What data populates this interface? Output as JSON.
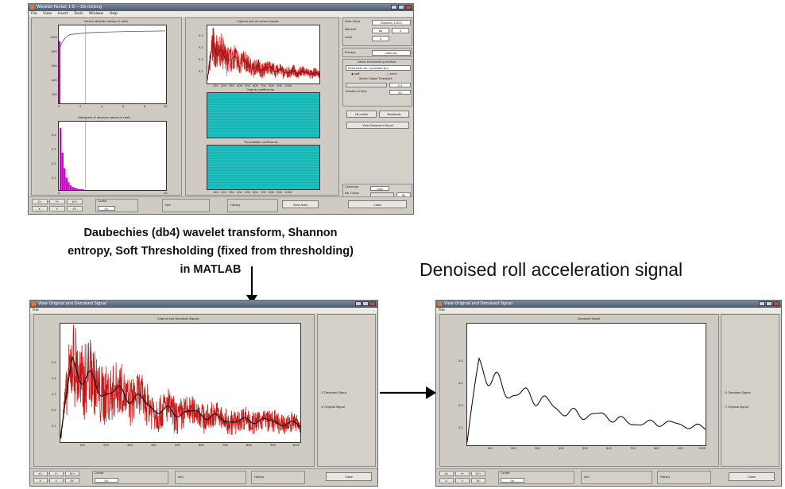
{
  "process_caption": {
    "line1": "Daubechies (db4) wavelet transform, Shannon",
    "line2": "entropy, Soft Thresholding  (fixed from thresholding)",
    "line3": "in MATLAB"
  },
  "result_caption": "Denoised roll acceleration signal",
  "colors": {
    "noisy_signal": "#c41a1a",
    "denoised_signal": "#111111",
    "histogram": "#cc00cc",
    "coefficients": "#22c4c4",
    "window_bg": "#d4d0c8"
  },
  "toolbox_window": {
    "title": "Wavelet Packet 1-D  --  De-noising",
    "menu": [
      "File",
      "View",
      "Insert",
      "Tools",
      "Window",
      "Help"
    ],
    "plots": {
      "sorted_abs": "Sorted absolute values of coefs",
      "histogram": "Histogram of absolute values of coefs",
      "original_denoised": "Original and de-noised signals",
      "original_coefs": "Original coefficients",
      "thresholded_coefs": "Thresholded coefficients"
    },
    "sorted_ticks_x": [
      "0",
      "2",
      "4",
      "6",
      "8",
      "10"
    ],
    "sorted_ticks_y": [
      "1000",
      "800",
      "600",
      "400",
      "200"
    ],
    "hist_ticks_x": [
      "0",
      "2",
      "4",
      "6",
      "8",
      "10"
    ],
    "hist_ticks_y": [
      "0.4",
      "0.3",
      "0.2",
      "0.1"
    ],
    "signal_ticks_x": [
      "100",
      "200",
      "300",
      "400",
      "500",
      "600",
      "700",
      "800",
      "900",
      "1000"
    ],
    "signal_ticks_y": [
      "0.5",
      "0.4",
      "0.3",
      "0.2"
    ],
    "info": {
      "data_label": "Data  (Size)",
      "data_value": "Dataset  (1024)",
      "wavelet_label": "Wavelet",
      "wavelet_family": "db",
      "wavelet_order": "4",
      "level_label": "Level",
      "level_value": "4",
      "entropy_label": "Entropy",
      "entropy_value": "shannon"
    },
    "thresholding": {
      "title": "Select thresholding method",
      "method": "Fixed form thr. (unscaled wn)",
      "soft": "soft",
      "hard": "hard",
      "global_label": "Select Global Threshold",
      "global_value": "2.5",
      "bins_label": "Number of bins",
      "bins_value": "50"
    },
    "buttons": {
      "denoise": "De-noise",
      "residuals": "Residuals",
      "view_denoised": "View Denoised Signal",
      "view_axes": "View Axes",
      "close": "Close"
    },
    "colormap": {
      "label": "Colormap",
      "value": "cool",
      "nb_label": "Nb. Colors",
      "nb_value": "64"
    },
    "bottom": {
      "center_label": "Center",
      "center_value": "On",
      "info_label": "Info",
      "history_label": "History"
    }
  },
  "denoised_window_left": {
    "title": "View Original and Denoised Signal",
    "menu": [
      "File"
    ],
    "plot_title": "Original and Denoised Signals",
    "ticks_x": [
      "100",
      "200",
      "300",
      "400",
      "500",
      "600",
      "700",
      "800",
      "900",
      "1000"
    ],
    "ticks_y": [
      "0.5",
      "0.4",
      "0.3",
      "0.2",
      "0.1"
    ],
    "legend": {
      "denoised": "Denoised Signal",
      "original": "Original Signal"
    },
    "close": "Close",
    "bottom": {
      "center_label": "Center",
      "center_value": "On",
      "info_label": "Info",
      "history_label": "History"
    }
  },
  "denoised_window_right": {
    "title": "View Original and Denoised Signal",
    "menu": [
      "File"
    ],
    "plot_title": "Denoised Signal",
    "ticks_x": [
      "100",
      "200",
      "300",
      "400",
      "500",
      "600",
      "700",
      "800",
      "900",
      "1000"
    ],
    "ticks_y": [
      "0.5",
      "0.4",
      "0.3",
      "0.2"
    ],
    "legend": {
      "denoised": "Denoised Signal",
      "original": "Original Signal"
    },
    "close": "Close",
    "bottom": {
      "center_label": "Center",
      "center_value": "On",
      "info_label": "Info",
      "history_label": "History"
    }
  }
}
